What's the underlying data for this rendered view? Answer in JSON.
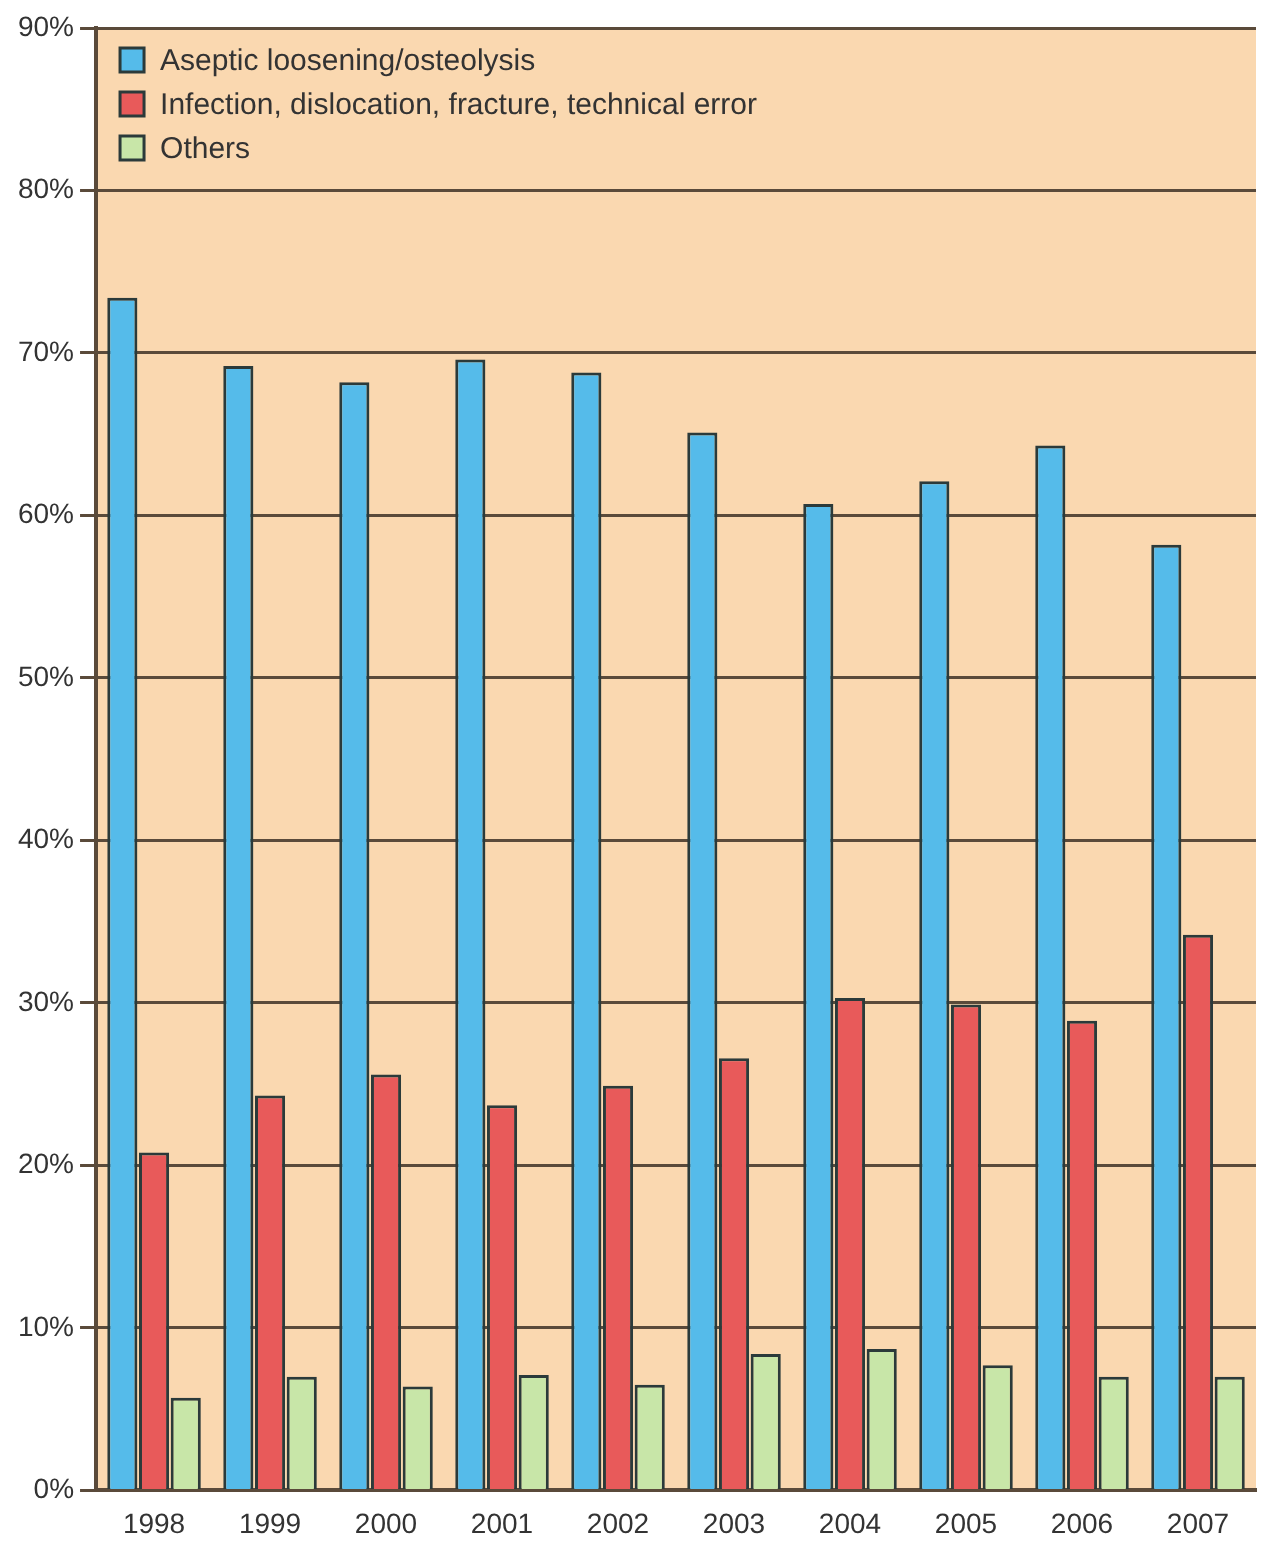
{
  "chart_data": {
    "type": "bar",
    "categories": [
      "1998",
      "1999",
      "2000",
      "2001",
      "2002",
      "2003",
      "2004",
      "2005",
      "2006",
      "2007"
    ],
    "series": [
      {
        "name": "Aseptic loosening/osteolysis",
        "color": "#55bbea",
        "values": [
          73.4,
          69.2,
          68.2,
          69.6,
          68.8,
          65.1,
          60.7,
          62.1,
          64.3,
          58.2
        ]
      },
      {
        "name": "Infection, dislocation, fracture, technical error",
        "color": "#e85a5a",
        "values": [
          20.8,
          24.3,
          25.6,
          23.7,
          24.9,
          26.6,
          30.3,
          29.9,
          28.9,
          34.2
        ]
      },
      {
        "name": "Others",
        "color": "#c8e6a8",
        "values": [
          5.7,
          7.0,
          6.4,
          7.1,
          6.5,
          8.4,
          8.7,
          7.7,
          7.0,
          7.0
        ]
      }
    ],
    "ylim": [
      0,
      90
    ],
    "yticks": [
      {
        "value": 0,
        "label": "0%"
      },
      {
        "value": 10,
        "label": "10%"
      },
      {
        "value": 20,
        "label": "20%"
      },
      {
        "value": 30,
        "label": "30%"
      },
      {
        "value": 40,
        "label": "40%"
      },
      {
        "value": 50,
        "label": "50%"
      },
      {
        "value": 60,
        "label": "60%"
      },
      {
        "value": 70,
        "label": "70%"
      },
      {
        "value": 80,
        "label": "80%"
      },
      {
        "value": 90,
        "label": "90%"
      }
    ],
    "grid": "y",
    "legend": "top left"
  }
}
